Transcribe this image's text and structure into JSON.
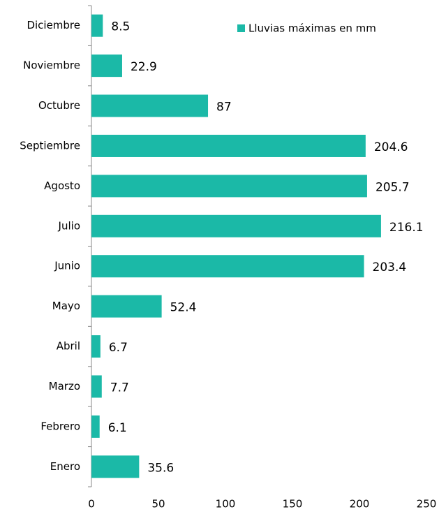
{
  "chart_data": {
    "type": "bar",
    "orientation": "horizontal",
    "categories": [
      "Enero",
      "Febrero",
      "Marzo",
      "Abril",
      "Mayo",
      "Junio",
      "Julio",
      "Agosto",
      "Septiembre",
      "Octubre",
      "Noviembre",
      "Diciembre"
    ],
    "series": [
      {
        "name": "Lluvias máximas en mm",
        "color": "#1bb9a7",
        "values": [
          35.6,
          6.1,
          7.7,
          6.7,
          52.4,
          203.4,
          216.1,
          205.7,
          204.6,
          87,
          22.9,
          8.5
        ]
      }
    ],
    "xlim": [
      0,
      250
    ],
    "xticks": [
      0,
      50,
      100,
      150,
      200,
      250
    ],
    "legend": "top-right"
  }
}
